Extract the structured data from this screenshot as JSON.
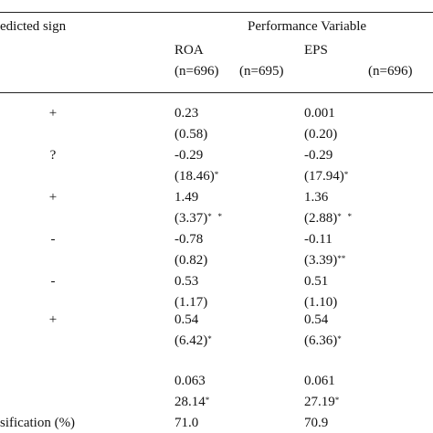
{
  "header": {
    "predicted_sign": "edicted sign",
    "performance_variable": "Performance Variable",
    "col1_name": "ROA",
    "col2_name": "EPS",
    "n_labels": [
      "(n=696)",
      "(n=695)",
      "(n=696)"
    ]
  },
  "rows": [
    {
      "sign": "+",
      "v1": "0.23",
      "v2": "0.001",
      "s1": "(0.58)",
      "s1_mark": "",
      "s2": "(0.20)",
      "s2_mark": ""
    },
    {
      "sign": "?",
      "v1": "-0.29",
      "v2": "-0.29",
      "s1": "(18.46)",
      "s1_mark": "*",
      "s2": "(17.94)",
      "s2_mark": "*"
    },
    {
      "sign": "+",
      "v1": "1.49",
      "v2": "1.36",
      "s1": "(3.37)",
      "s1_mark": "*   *",
      "s2": "(2.88)",
      "s2_mark": "*   *"
    },
    {
      "sign": "-",
      "v1": "-0.78",
      "v2": "-0.11",
      "s1": "(0.82)",
      "s1_mark": "",
      "s2": "(3.39)",
      "s2_mark": "**"
    },
    {
      "sign": "-",
      "v1": "0.53",
      "v2": "0.51",
      "s1": "(1.17)",
      "s1_mark": "",
      "s2": "(1.10)",
      "s2_mark": ""
    },
    {
      "sign": "+",
      "v1": "0.54",
      "v2": "0.54",
      "s1": "(6.42)",
      "s1_mark": "*",
      "s2": "(6.36)",
      "s2_mark": "*"
    }
  ],
  "summary": {
    "r1_v1": "0.063",
    "r1_v2": "0.061",
    "r2_v1": "28.14",
    "r2_v1_mark": "*",
    "r2_v2": "27.19",
    "r2_v2_mark": "*",
    "classification_label": "sification (%)",
    "classification_v1": "71.0",
    "classification_v2": "70.9"
  }
}
